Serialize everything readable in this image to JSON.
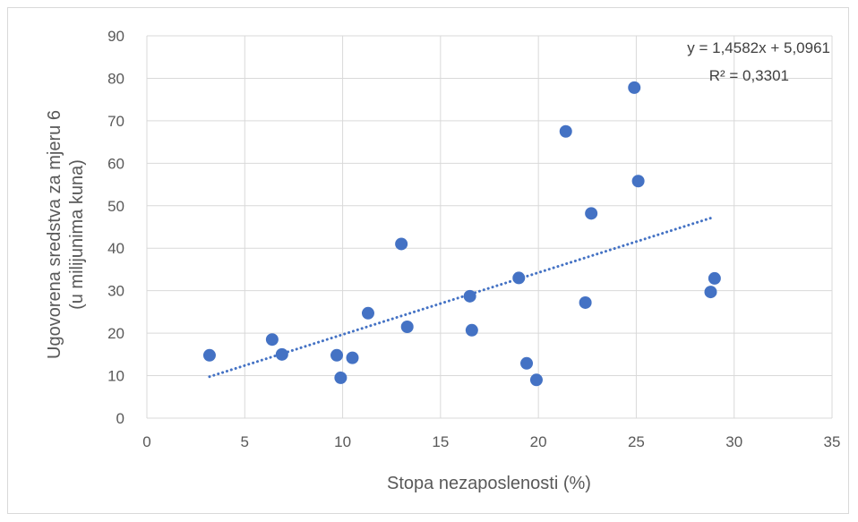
{
  "chart_data": {
    "type": "scatter",
    "xlabel": "Stopa nezaposlenosti (%)",
    "ylabel_line1": "Ugovorena sredstva za mjeru 6",
    "ylabel_line2": "(u milijunima kuna)",
    "xlim": [
      0,
      35
    ],
    "ylim": [
      0,
      90
    ],
    "x_ticks": [
      0,
      5,
      10,
      15,
      20,
      25,
      30,
      35
    ],
    "y_ticks": [
      0,
      10,
      20,
      30,
      40,
      50,
      60,
      70,
      80,
      90
    ],
    "grid": true,
    "point_color": "#4472c4",
    "trendline_color": "#4472c4",
    "points": [
      {
        "x": 3.2,
        "y": 14.8
      },
      {
        "x": 6.4,
        "y": 18.5
      },
      {
        "x": 6.9,
        "y": 15.0
      },
      {
        "x": 9.7,
        "y": 14.8
      },
      {
        "x": 9.9,
        "y": 9.5
      },
      {
        "x": 10.5,
        "y": 14.2
      },
      {
        "x": 11.3,
        "y": 24.7
      },
      {
        "x": 13.0,
        "y": 41.0
      },
      {
        "x": 13.3,
        "y": 21.5
      },
      {
        "x": 16.5,
        "y": 28.7
      },
      {
        "x": 16.6,
        "y": 20.7
      },
      {
        "x": 19.0,
        "y": 33.0
      },
      {
        "x": 19.4,
        "y": 12.9
      },
      {
        "x": 19.9,
        "y": 9.0
      },
      {
        "x": 21.4,
        "y": 67.5
      },
      {
        "x": 22.4,
        "y": 27.2
      },
      {
        "x": 22.7,
        "y": 48.2
      },
      {
        "x": 24.9,
        "y": 77.8
      },
      {
        "x": 25.1,
        "y": 55.8
      },
      {
        "x": 28.8,
        "y": 29.7
      },
      {
        "x": 29.0,
        "y": 32.9
      }
    ],
    "trendline": {
      "slope": 1.4582,
      "intercept": 5.0961,
      "x_from": 3.2,
      "x_to": 29.0,
      "equation_label": "y = 1,4582x + 5,0961",
      "r2_label": "R² = 0,3301"
    }
  }
}
